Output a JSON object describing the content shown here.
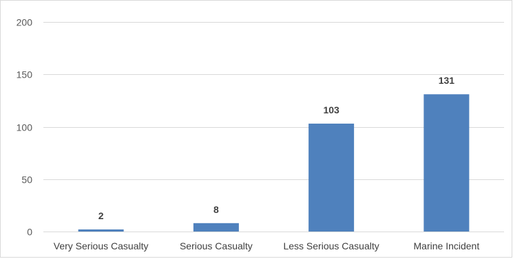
{
  "chart_data": {
    "type": "bar",
    "categories": [
      "Very Serious Casualty",
      "Serious Casualty",
      "Less Serious Casualty",
      "Marine Incident"
    ],
    "values": [
      2,
      8,
      103,
      131
    ],
    "data_labels": [
      "2",
      "8",
      "103",
      "131"
    ],
    "title": "",
    "xlabel": "",
    "ylabel": "",
    "ylim": [
      0,
      200
    ],
    "yticks": [
      0,
      50,
      100,
      150,
      200
    ],
    "ytick_labels": [
      "0",
      "50",
      "100",
      "150",
      "200"
    ],
    "grid": true,
    "legend": "none",
    "bar_color": "#4f81bd"
  }
}
